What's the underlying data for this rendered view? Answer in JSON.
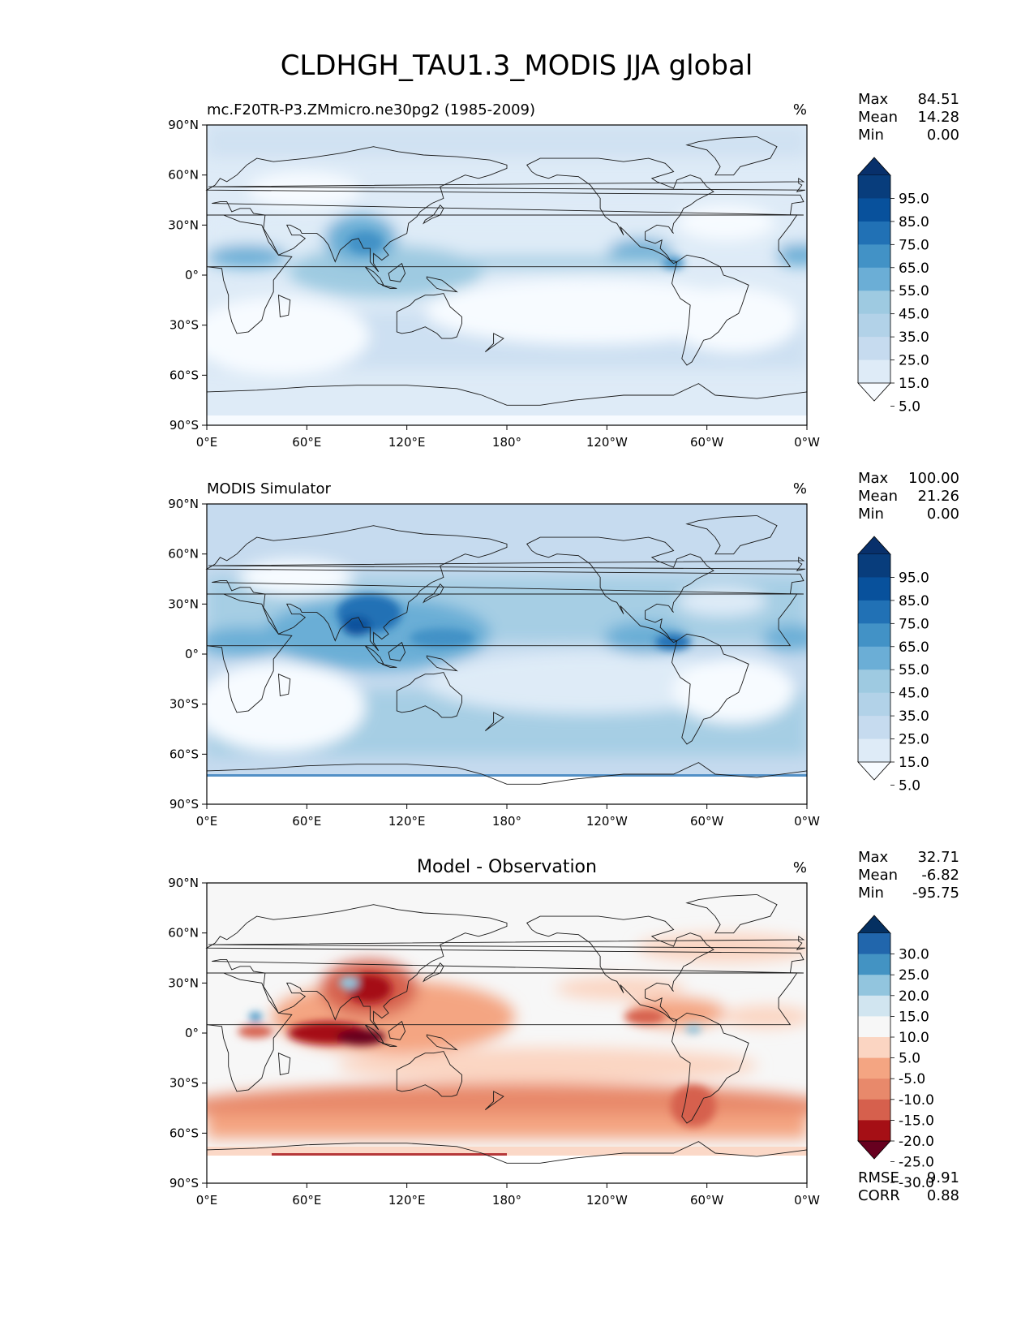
{
  "figure_title": "CLDHGH_TAU1.3_MODIS JJA global",
  "colors": {
    "blues": [
      "#f7fbff",
      "#deebf7",
      "#c6dbef",
      "#b2d2e8",
      "#9ecae1",
      "#6baed6",
      "#4292c6",
      "#2171b5",
      "#08519c",
      "#083d7c",
      "#08306b"
    ],
    "diverging": [
      "#67001f",
      "#a50f15",
      "#d6604d",
      "#e8896b",
      "#f4a582",
      "#fbd5c2",
      "#f7f7f7",
      "#d1e5f0",
      "#92c5de",
      "#4393c3",
      "#2166ac",
      "#053061"
    ],
    "coast": "#1a1a1a",
    "no_data": "#ffffff"
  },
  "chart_data": [
    {
      "type": "heatmap",
      "title": "mc.F20TR-P3.ZMmicro.ne30pg2 (1985-2009)",
      "units": "%",
      "xlim": [
        0,
        360
      ],
      "ylim": [
        -90,
        90
      ],
      "x_ticks": [
        "0°E",
        "60°E",
        "120°E",
        "180°",
        "120°W",
        "60°W",
        "0°W"
      ],
      "y_ticks": [
        "90°N",
        "60°N",
        "30°N",
        "0°",
        "30°S",
        "60°S",
        "90°S"
      ],
      "stats": {
        "labels": [
          "Max",
          "Mean",
          "Min"
        ],
        "values": [
          "84.51",
          "14.28",
          "0.00"
        ]
      },
      "colorbar": {
        "scale": "blues",
        "extend": "both",
        "ticks": [
          "95.0",
          "85.0",
          "75.0",
          "65.0",
          "55.0",
          "45.0",
          "35.0",
          "25.0",
          "15.0",
          "5.0"
        ]
      }
    },
    {
      "type": "heatmap",
      "title": "MODIS Simulator",
      "units": "%",
      "xlim": [
        0,
        360
      ],
      "ylim": [
        -90,
        90
      ],
      "x_ticks": [
        "0°E",
        "60°E",
        "120°E",
        "180°",
        "120°W",
        "60°W",
        "0°W"
      ],
      "y_ticks": [
        "90°N",
        "60°N",
        "30°N",
        "0°",
        "30°S",
        "60°S",
        "90°S"
      ],
      "stats": {
        "labels": [
          "Max",
          "Mean",
          "Min"
        ],
        "values": [
          "100.00",
          "21.26",
          "0.00"
        ]
      },
      "colorbar": {
        "scale": "blues",
        "extend": "both",
        "ticks": [
          "95.0",
          "85.0",
          "75.0",
          "65.0",
          "55.0",
          "45.0",
          "35.0",
          "25.0",
          "15.0",
          "5.0"
        ]
      }
    },
    {
      "type": "heatmap",
      "title": "Model - Observation",
      "units": "%",
      "xlim": [
        0,
        360
      ],
      "ylim": [
        -90,
        90
      ],
      "x_ticks": [
        "0°E",
        "60°E",
        "120°E",
        "180°",
        "120°W",
        "60°W",
        "0°W"
      ],
      "y_ticks": [
        "90°N",
        "60°N",
        "30°N",
        "0°",
        "30°S",
        "60°S",
        "90°S"
      ],
      "stats": {
        "labels": [
          "Max",
          "Mean",
          "Min"
        ],
        "values": [
          "32.71",
          "-6.82",
          "-95.75"
        ]
      },
      "colorbar": {
        "scale": "diverging",
        "extend": "both",
        "ticks": [
          "30.0",
          "25.0",
          "20.0",
          "15.0",
          "10.0",
          "5.0",
          "-5.0",
          "-10.0",
          "-15.0",
          "-20.0",
          "-25.0",
          "-30.0"
        ]
      },
      "metrics": {
        "labels": [
          "RMSE",
          "CORR"
        ],
        "values": [
          "9.91",
          "0.88"
        ]
      }
    }
  ]
}
